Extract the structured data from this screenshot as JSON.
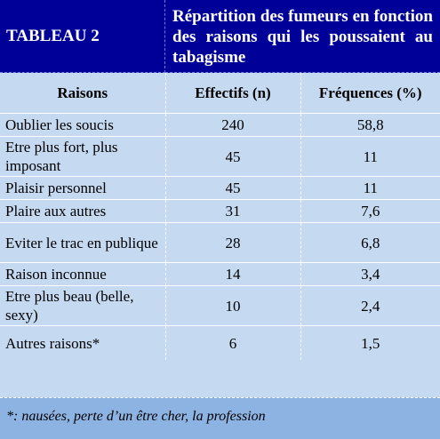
{
  "title": {
    "label": "TABLEAU 2",
    "caption": "Répartition des fumeurs en fonction des raisons qui les poussaient au tabagisme"
  },
  "headers": {
    "reasons": "Raisons",
    "counts": "Effectifs (n)",
    "frequencies": "Fréquences (%)"
  },
  "rows": [
    {
      "reason": "Oublier les soucis",
      "count": "240",
      "frequency": "58,8"
    },
    {
      "reason": "Etre plus fort, plus imposant",
      "count": "45",
      "frequency": "11"
    },
    {
      "reason": "Plaisir personnel",
      "count": "45",
      "frequency": "11"
    },
    {
      "reason": "Plaire aux autres",
      "count": "31",
      "frequency": "7,6"
    },
    {
      "reason": "Eviter le trac en publique",
      "count": "28",
      "frequency": "6,8"
    },
    {
      "reason": "Raison inconnue",
      "count": "14",
      "frequency": "3,4"
    },
    {
      "reason": "Etre plus beau (belle, sexy)",
      "count": "10",
      "frequency": "2,4"
    },
    {
      "reason": "Autres raisons*",
      "count": "6",
      "frequency": "1,5"
    }
  ],
  "footnote": "*: nausées, perte d’un être cher, la profession",
  "colors": {
    "title_background": "#000099",
    "table_background": "#c5d9f1",
    "footnote_background": "#8db3e2"
  }
}
